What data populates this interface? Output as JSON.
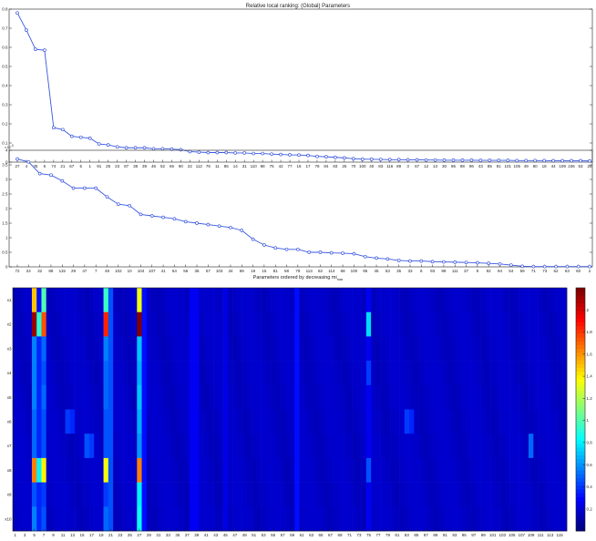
{
  "chart_data": [
    {
      "type": "line",
      "title": "Relative local ranking: (Global) Parameters",
      "xlabel": "",
      "ylabel": "",
      "ylim": [
        0,
        0.8
      ],
      "yticks": [
        0,
        0.1,
        0.2,
        0.3,
        0.4,
        0.5,
        0.6,
        0.7,
        0.8
      ],
      "categories": [
        "27",
        "4",
        "35",
        "6",
        "74",
        "21",
        "67",
        "5",
        "1",
        "91",
        "25",
        "23",
        "87",
        "38",
        "39",
        "46",
        "52",
        "65",
        "90",
        "22",
        "112",
        "76",
        "11",
        "85",
        "14",
        "31",
        "110",
        "88",
        "75",
        "42",
        "77",
        "16",
        "17",
        "78",
        "84",
        "83",
        "25",
        "70",
        "100",
        "40",
        "83",
        "116",
        "89",
        "3",
        "67",
        "12",
        "13",
        "30",
        "86",
        "98",
        "96",
        "43",
        "85",
        "81",
        "101",
        "105",
        "49",
        "80",
        "18",
        "44",
        "109",
        "106",
        "53",
        "28"
      ],
      "values": [
        0.78,
        0.69,
        0.59,
        0.585,
        0.18,
        0.17,
        0.135,
        0.13,
        0.125,
        0.095,
        0.09,
        0.08,
        0.075,
        0.075,
        0.075,
        0.07,
        0.07,
        0.068,
        0.065,
        0.055,
        0.052,
        0.05,
        0.05,
        0.05,
        0.048,
        0.048,
        0.045,
        0.045,
        0.042,
        0.04,
        0.038,
        0.037,
        0.035,
        0.03,
        0.028,
        0.025,
        0.022,
        0.018,
        0.015,
        0.015,
        0.014,
        0.013,
        0.013,
        0.012,
        0.012,
        0.011,
        0.011,
        0.01,
        0.01,
        0.01,
        0.01,
        0.009,
        0.009,
        0.009,
        0.009,
        0.008,
        0.008,
        0.008,
        0.008,
        0.007,
        0.007,
        0.007,
        0.007,
        0.006
      ]
    },
    {
      "type": "line",
      "title": "",
      "xlabel": "Parameters ordered by decreasing mi",
      "xlabel_sub": "max",
      "ylabel": "",
      "ylim_exponent": "x 10",
      "ylim_exponent_power": "-3",
      "ylim": [
        0,
        4
      ],
      "yticks": [
        0,
        0.5,
        1,
        1.5,
        2,
        2.5,
        3,
        3.5,
        4
      ],
      "categories": [
        "72",
        "24",
        "32",
        "88",
        "115",
        "29",
        "47",
        "7",
        "48",
        "102",
        "10",
        "104",
        "107",
        "41",
        "64",
        "56",
        "36",
        "57",
        "103",
        "34",
        "69",
        "19",
        "15",
        "81",
        "58",
        "79",
        "113",
        "82",
        "114",
        "68",
        "100",
        "95",
        "45",
        "53",
        "35",
        "33",
        "8",
        "93",
        "99",
        "111",
        "37",
        "9",
        "92",
        "94",
        "54",
        "59",
        "71",
        "73",
        "62",
        "63",
        "60",
        "2"
      ],
      "values": [
        3.7,
        3.6,
        3.2,
        3.15,
        2.95,
        2.7,
        2.7,
        2.7,
        2.4,
        2.15,
        2.1,
        1.8,
        1.75,
        1.7,
        1.65,
        1.55,
        1.5,
        1.45,
        1.4,
        1.35,
        1.25,
        0.95,
        0.75,
        0.65,
        0.6,
        0.6,
        0.5,
        0.5,
        0.48,
        0.47,
        0.45,
        0.35,
        0.3,
        0.27,
        0.22,
        0.2,
        0.2,
        0.18,
        0.17,
        0.16,
        0.15,
        0.14,
        0.12,
        0.1,
        0.06,
        0.02,
        0.01,
        0.01,
        0.01,
        0.01,
        0.01,
        0.01
      ]
    },
    {
      "type": "heatmap",
      "title": "",
      "y_categories": [
        "x1",
        "x2",
        "x3",
        "x4",
        "x5",
        "x6",
        "x7",
        "x8",
        "x9",
        "x10"
      ],
      "x_tick_labels": [
        "1",
        "3",
        "5",
        "7",
        "9",
        "11",
        "13",
        "15",
        "17",
        "19",
        "21",
        "23",
        "25",
        "27",
        "29",
        "31",
        "33",
        "35",
        "37",
        "39",
        "41",
        "43",
        "45",
        "47",
        "49",
        "51",
        "53",
        "55",
        "57",
        "59",
        "61",
        "63",
        "65",
        "67",
        "69",
        "71",
        "73",
        "75",
        "77",
        "79",
        "81",
        "83",
        "85",
        "87",
        "89",
        "91",
        "93",
        "95",
        "97",
        "99",
        "101",
        "103",
        "105",
        "107",
        "109",
        "111",
        "113",
        "115"
      ],
      "x_count": 116,
      "colorbar_ticks": [
        "0.2",
        "0.4",
        "0.6",
        "0.8",
        "1",
        "1.2",
        "1.4",
        "1.6",
        "1.8",
        "2"
      ],
      "colorbar_range": [
        0,
        2.2
      ],
      "base_value": 0.12,
      "column_boosts": [
        {
          "col": 5,
          "value": 0.6
        },
        {
          "col": 6,
          "value": 0.35
        },
        {
          "col": 7,
          "value": 0.55
        },
        {
          "col": 20,
          "value": 0.5
        },
        {
          "col": 21,
          "value": 0.45
        },
        {
          "col": 27,
          "value": 0.6
        },
        {
          "col": 28,
          "value": 0.3
        },
        {
          "col": 38,
          "value": 0.25
        },
        {
          "col": 39,
          "value": 0.25
        },
        {
          "col": 45,
          "value": 0.22
        },
        {
          "col": 60,
          "value": 0.3
        },
        {
          "col": 75,
          "value": 0.25
        }
      ],
      "cells": [
        {
          "col": 5,
          "row": 0,
          "value": 1.5
        },
        {
          "col": 7,
          "row": 0,
          "value": 1.0
        },
        {
          "col": 6,
          "row": 0,
          "value": 0.3
        },
        {
          "col": 20,
          "row": 0,
          "value": 0.95
        },
        {
          "col": 27,
          "row": 0,
          "value": 1.35
        },
        {
          "col": 5,
          "row": 1,
          "value": 2.15
        },
        {
          "col": 6,
          "row": 1,
          "value": 0.9
        },
        {
          "col": 7,
          "row": 1,
          "value": 1.75
        },
        {
          "col": 20,
          "row": 1,
          "value": 1.85
        },
        {
          "col": 27,
          "row": 1,
          "value": 2.2
        },
        {
          "col": 75,
          "row": 1,
          "value": 0.75
        },
        {
          "col": 5,
          "row": 2,
          "value": 0.55
        },
        {
          "col": 7,
          "row": 2,
          "value": 0.5
        },
        {
          "col": 20,
          "row": 2,
          "value": 0.55
        },
        {
          "col": 27,
          "row": 2,
          "value": 0.7
        },
        {
          "col": 5,
          "row": 3,
          "value": 0.55
        },
        {
          "col": 7,
          "row": 3,
          "value": 0.45
        },
        {
          "col": 20,
          "row": 3,
          "value": 0.5
        },
        {
          "col": 27,
          "row": 3,
          "value": 0.65
        },
        {
          "col": 75,
          "row": 3,
          "value": 0.4
        },
        {
          "col": 5,
          "row": 4,
          "value": 0.55
        },
        {
          "col": 7,
          "row": 4,
          "value": 0.5
        },
        {
          "col": 20,
          "row": 4,
          "value": 0.5
        },
        {
          "col": 27,
          "row": 4,
          "value": 0.7
        },
        {
          "col": 5,
          "row": 5,
          "value": 0.5
        },
        {
          "col": 7,
          "row": 5,
          "value": 0.45
        },
        {
          "col": 20,
          "row": 5,
          "value": 0.45
        },
        {
          "col": 27,
          "row": 5,
          "value": 0.65
        },
        {
          "col": 12,
          "row": 5,
          "value": 0.4
        },
        {
          "col": 13,
          "row": 5,
          "value": 0.35
        },
        {
          "col": 83,
          "row": 5,
          "value": 0.4
        },
        {
          "col": 84,
          "row": 5,
          "value": 0.35
        },
        {
          "col": 5,
          "row": 6,
          "value": 0.5
        },
        {
          "col": 7,
          "row": 6,
          "value": 0.45
        },
        {
          "col": 20,
          "row": 6,
          "value": 0.45
        },
        {
          "col": 27,
          "row": 6,
          "value": 0.6
        },
        {
          "col": 16,
          "row": 6,
          "value": 0.45
        },
        {
          "col": 17,
          "row": 6,
          "value": 0.4
        },
        {
          "col": 109,
          "row": 6,
          "value": 0.5
        },
        {
          "col": 5,
          "row": 7,
          "value": 1.65
        },
        {
          "col": 6,
          "row": 7,
          "value": 0.8
        },
        {
          "col": 7,
          "row": 7,
          "value": 1.4
        },
        {
          "col": 20,
          "row": 7,
          "value": 1.35
        },
        {
          "col": 27,
          "row": 7,
          "value": 1.65
        },
        {
          "col": 75,
          "row": 7,
          "value": 0.45
        },
        {
          "col": 5,
          "row": 8,
          "value": 0.45
        },
        {
          "col": 7,
          "row": 8,
          "value": 0.4
        },
        {
          "col": 20,
          "row": 8,
          "value": 0.4
        },
        {
          "col": 27,
          "row": 8,
          "value": 0.8
        },
        {
          "col": 5,
          "row": 9,
          "value": 0.55
        },
        {
          "col": 7,
          "row": 9,
          "value": 0.45
        },
        {
          "col": 20,
          "row": 9,
          "value": 0.5
        },
        {
          "col": 27,
          "row": 9,
          "value": 0.85
        }
      ]
    }
  ],
  "colors": {
    "line": "#3a57e0",
    "heatmap_low": "#00008f",
    "heatmap_high": "#800000"
  }
}
